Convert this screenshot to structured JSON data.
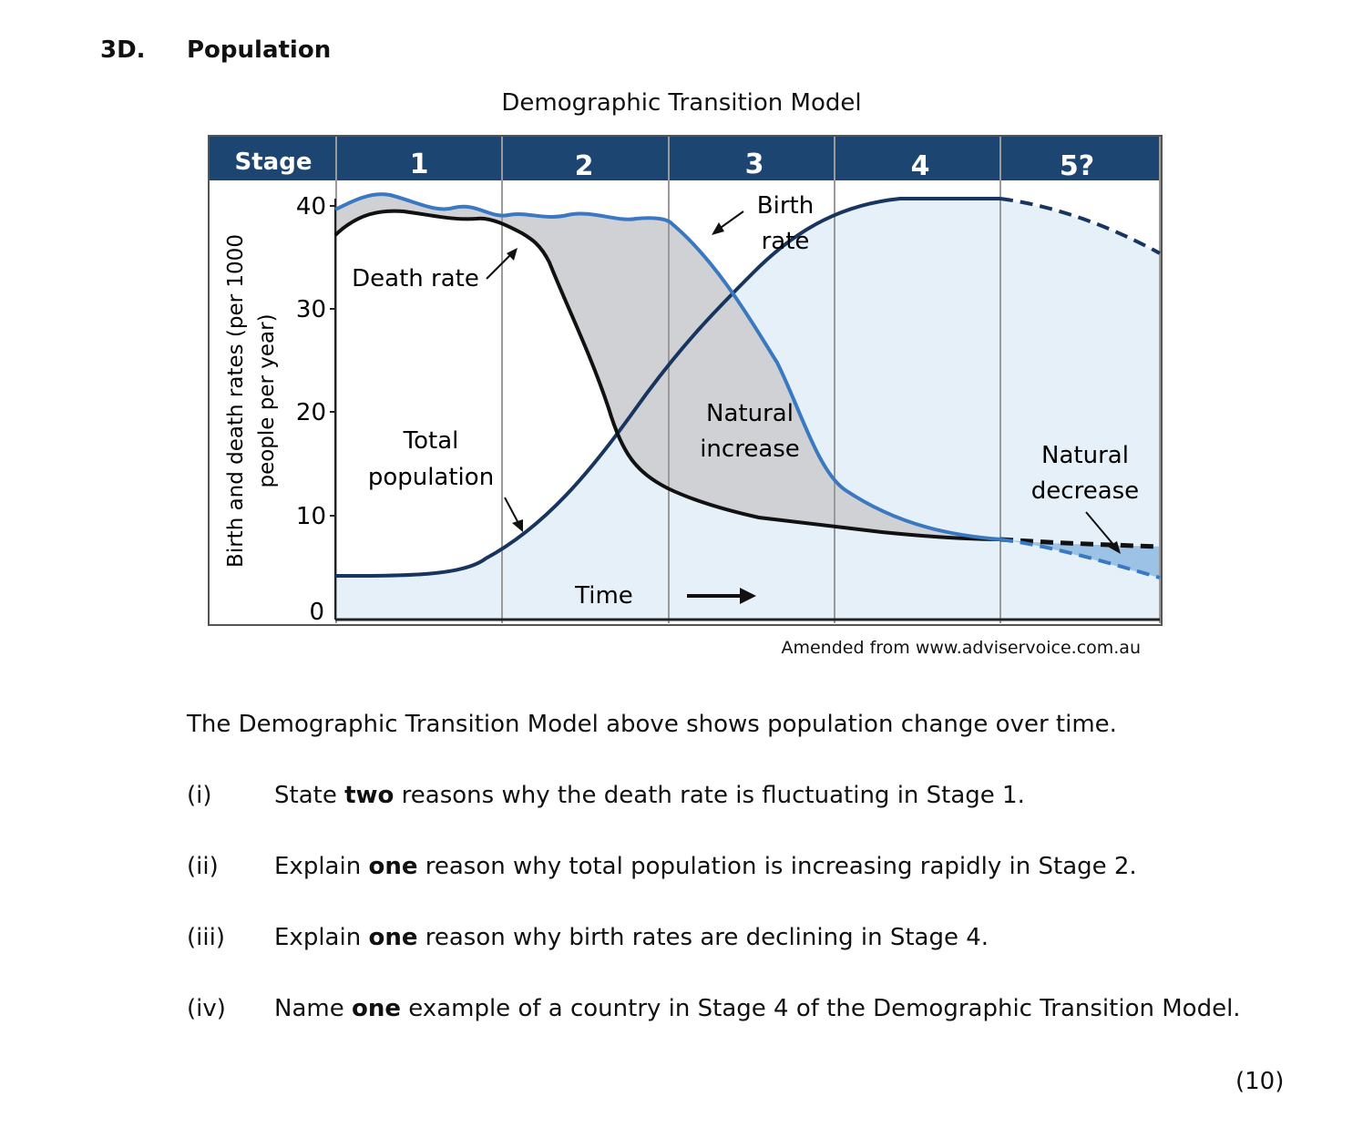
{
  "question": {
    "number": "3D.",
    "title": "Population"
  },
  "figure": {
    "title": "Demographic Transition Model",
    "source": "Amended from www.adviservoice.com.au",
    "header_label": "Stage",
    "stages": [
      "1",
      "2",
      "3",
      "4",
      "5?"
    ],
    "y_axis_label_line1": "Birth and death rates (per 1000",
    "y_axis_label_line2": "people per year)",
    "y_ticks": [
      "40",
      "30",
      "20",
      "10",
      "0"
    ],
    "x_label": "Time",
    "annotations": {
      "birth_rate_1": "Birth",
      "birth_rate_2": "rate",
      "death_rate": "Death rate",
      "total_population_1": "Total",
      "total_population_2": "population",
      "natural_increase_1": "Natural",
      "natural_increase_2": "increase",
      "natural_decrease_1": "Natural",
      "natural_decrease_2": "decrease"
    },
    "colors": {
      "header_bg": "#1c4571",
      "birth_rate": "#3a78c2",
      "death_rate": "#111111",
      "total_population": "#17355f",
      "natural_increase_fill": "#cfd1d4",
      "population_fill": "#e6f0f8",
      "natural_decrease_fill": "#9cc3e6"
    }
  },
  "chart_data": {
    "type": "line",
    "title": "Demographic Transition Model",
    "xlabel": "Time",
    "ylabel": "Birth and death rates (per 1000 people per year)",
    "ylim": [
      0,
      40
    ],
    "x": [
      "Stage 1",
      "Stage 2",
      "Stage 3",
      "Stage 4",
      "Stage 5?"
    ],
    "series": [
      {
        "name": "Birth rate",
        "values": [
          40,
          38.5,
          20,
          8,
          5
        ]
      },
      {
        "name": "Death rate",
        "values": [
          38.5,
          27,
          11,
          8,
          7
        ]
      },
      {
        "name": "Total population",
        "values": [
          4,
          10,
          25,
          39,
          35
        ]
      }
    ]
  },
  "intro": "The Demographic Transition Model above shows population change over time.",
  "questions": [
    {
      "label": "(i)",
      "pre": "State ",
      "bold": "two",
      "post": " reasons why the death rate is fluctuating in Stage 1."
    },
    {
      "label": "(ii)",
      "pre": "Explain ",
      "bold": "one",
      "post": " reason why total population is increasing rapidly in Stage 2."
    },
    {
      "label": "(iii)",
      "pre": "Explain ",
      "bold": "one",
      "post": " reason why birth rates are declining in Stage 4."
    },
    {
      "label": "(iv)",
      "pre": "Name ",
      "bold": "one",
      "post": " example of a country in Stage 4 of the Demographic Transition Model."
    }
  ],
  "marks": "(10)"
}
